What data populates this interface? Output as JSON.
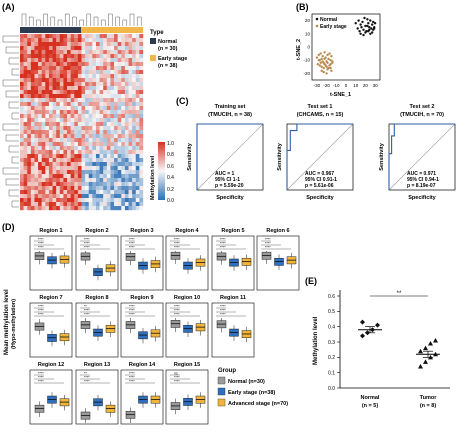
{
  "panels": {
    "A": {
      "letter": "(A)",
      "legend_title": "Type",
      "legend_items": [
        {
          "label": "Normal",
          "sub": "(n = 30)",
          "color": "#2b3a4e"
        },
        {
          "label": "Early stage",
          "sub": "(n = 38)",
          "color": "#f2b74a"
        }
      ],
      "colorbar_title": "Methylation level",
      "colorbar_ticks": [
        "1.0",
        "0.8",
        "0.6",
        "0.4",
        "0.2",
        "0.0"
      ]
    },
    "B": {
      "letter": "(B)",
      "legend": [
        "Normal",
        "Early stage"
      ],
      "xlabel": "t-SNE_1",
      "ylabel": "t-SNE_2",
      "x_ticks": [
        "-30",
        "-20",
        "-10",
        "0",
        "10",
        "20",
        "30"
      ],
      "y_ticks": [
        "20",
        "10",
        "0",
        "-10",
        "-20"
      ]
    },
    "C": {
      "letter": "(C)",
      "plots": [
        {
          "title": "Training set",
          "subtitle": "(TMUCIH, n = 38)",
          "auc": "AUC = 1",
          "ci": "95% CI 1-1",
          "p": "p = 5.59e-20"
        },
        {
          "title": "Test set 1",
          "subtitle": "(CHCAMS, n = 15)",
          "auc": "AUC = 0.967",
          "ci": "95% CI 0.91-1",
          "p": "p = 5.61e-06"
        },
        {
          "title": "Test set 2",
          "subtitle": "(TMUCIH, n = 70)",
          "auc": "AUC = 0.971",
          "ci": "95% CI 0.94-1",
          "p": "p = 8.19e-07"
        }
      ],
      "xlabel": "Specificity",
      "ylabel": "Sensitivity"
    },
    "D": {
      "letter": "(D)",
      "ylabel_line1": "Mean methylation level",
      "ylabel_line2": "(Hypo-methylation)",
      "regions": [
        "Region 1",
        "Region 2",
        "Region 3",
        "Region 4",
        "Region 5",
        "Region 6",
        "Region 7",
        "Region 8",
        "Region 9",
        "Region 10",
        "Region 11",
        "Region 12",
        "Region 13",
        "Region 14",
        "Region 15"
      ],
      "sig_rows": [
        [
          "****",
          "****",
          "****",
          "****",
          "****",
          "****",
          "****",
          "**",
          "****",
          "****",
          "****",
          "****",
          "**",
          "****",
          "ns"
        ],
        [
          "****",
          "****",
          "****",
          "****",
          "****",
          "****",
          "****",
          "****",
          "****",
          "****",
          "****",
          "****",
          "****",
          "****",
          "****"
        ],
        [
          "****",
          "****",
          "****",
          "****",
          "****",
          "****",
          "****",
          "****",
          "****",
          "****",
          "****",
          "****",
          "****",
          "****",
          "****"
        ]
      ],
      "legend_title": "Group",
      "legend_items": [
        {
          "label": "Normal (n=30)",
          "color": "#9a9a9a"
        },
        {
          "label": "Early stage (n=38)",
          "color": "#2d6fc0"
        },
        {
          "label": "Advanced stage (n=70)",
          "color": "#f2b53a"
        }
      ]
    },
    "E": {
      "letter": "(E)",
      "sig": "**",
      "ylabel": "Methylation level",
      "y_ticks": [
        "0.6",
        "0.5",
        "0.4",
        "0.3",
        "0.2",
        "0.1",
        "0.0"
      ],
      "groups": [
        {
          "label": "Normal",
          "sub": "(n = 5)"
        },
        {
          "label": "Tumor",
          "sub": "(n = 8)"
        }
      ]
    }
  },
  "chart_data": [
    {
      "type": "scatter",
      "panel": "B",
      "xlabel": "t-SNE_1",
      "ylabel": "t-SNE_2",
      "xlim": [
        -35,
        35
      ],
      "ylim": [
        -25,
        25
      ],
      "series": [
        {
          "name": "Normal",
          "color": "#111111",
          "x": [
            10,
            13,
            15,
            17,
            19,
            20,
            22,
            23,
            24,
            25,
            27,
            28,
            29,
            30,
            12,
            14,
            16,
            18,
            21,
            22,
            24,
            26,
            27,
            29,
            15,
            18,
            20,
            23,
            25,
            28
          ],
          "y": [
            18,
            20,
            17,
            19,
            22,
            16,
            21,
            18,
            15,
            20,
            17,
            19,
            14,
            18,
            14,
            12,
            15,
            13,
            12,
            16,
            13,
            14,
            11,
            15,
            10,
            9,
            11,
            12,
            10,
            13
          ]
        },
        {
          "name": "Early stage",
          "color": "#b88a4e",
          "x": [
            -30,
            -28,
            -27,
            -26,
            -25,
            -24,
            -23,
            -22,
            -21,
            -20,
            -19,
            -18,
            -17,
            -16,
            -15,
            -14,
            -29,
            -27,
            -25,
            -23,
            -22,
            -20,
            -19,
            -17,
            -16,
            -15,
            -28,
            -26,
            -24,
            -22,
            -21,
            -19,
            -18,
            -16,
            -14,
            -25,
            -23,
            -20
          ],
          "y": [
            -8,
            -6,
            -10,
            -5,
            -9,
            -7,
            -12,
            -4,
            -8,
            -11,
            -6,
            -9,
            -5,
            -10,
            -7,
            -12,
            -13,
            -14,
            -15,
            -16,
            -13,
            -15,
            -17,
            -14,
            -16,
            -18,
            -10,
            -12,
            -11,
            -9,
            -14,
            -12,
            -16,
            -13,
            -11,
            -18,
            -19,
            -20
          ]
        }
      ]
    },
    {
      "type": "line",
      "panel": "C",
      "xlabel": "Specificity",
      "ylabel": "Sensitivity",
      "curves": [
        {
          "name": "Training set",
          "fpr": [
            0,
            0,
            1
          ],
          "tpr": [
            0,
            1,
            1
          ]
        },
        {
          "name": "Test set 1",
          "fpr": [
            0,
            0,
            0.05,
            0.05,
            0.15,
            0.15,
            1
          ],
          "tpr": [
            0,
            0.6,
            0.6,
            0.9,
            0.9,
            1,
            1
          ]
        },
        {
          "name": "Test set 2",
          "fpr": [
            0,
            0,
            0.04,
            0.04,
            0.08,
            0.08,
            1
          ],
          "tpr": [
            0,
            0.55,
            0.55,
            0.82,
            0.82,
            1,
            1
          ]
        }
      ]
    },
    {
      "type": "box",
      "panel": "D",
      "ylim": [
        0,
        1
      ],
      "groups": [
        "Normal",
        "Early stage",
        "Advanced stage"
      ],
      "regions": [
        {
          "name": "Region 1",
          "medians": [
            0.87,
            0.76,
            0.78
          ]
        },
        {
          "name": "Region 2",
          "medians": [
            0.86,
            0.45,
            0.55
          ]
        },
        {
          "name": "Region 3",
          "medians": [
            0.85,
            0.62,
            0.66
          ]
        },
        {
          "name": "Region 4",
          "medians": [
            0.88,
            0.62,
            0.7
          ]
        },
        {
          "name": "Region 5",
          "medians": [
            0.86,
            0.7,
            0.72
          ]
        },
        {
          "name": "Region 6",
          "medians": [
            0.88,
            0.72,
            0.76
          ]
        },
        {
          "name": "Region 7",
          "medians": [
            0.78,
            0.48,
            0.5
          ]
        },
        {
          "name": "Region 8",
          "medians": [
            0.82,
            0.62,
            0.72
          ]
        },
        {
          "name": "Region 9",
          "medians": [
            0.82,
            0.55,
            0.6
          ]
        },
        {
          "name": "Region 10",
          "medians": [
            0.85,
            0.72,
            0.76
          ]
        },
        {
          "name": "Region 11",
          "medians": [
            0.84,
            0.62,
            0.58
          ]
        },
        {
          "name": "Region 12",
          "medians": [
            0.38,
            0.62,
            0.55
          ]
        },
        {
          "name": "Region 13",
          "medians": [
            0.2,
            0.55,
            0.38
          ]
        },
        {
          "name": "Region 14",
          "medians": [
            0.22,
            0.62,
            0.62
          ]
        },
        {
          "name": "Region 15",
          "medians": [
            0.45,
            0.56,
            0.62
          ]
        }
      ]
    },
    {
      "type": "scatter",
      "panel": "E",
      "ylabel": "Methylation level",
      "ylim": [
        0,
        0.6
      ],
      "categories": [
        "Normal",
        "Tumor"
      ],
      "series": [
        {
          "name": "Normal",
          "mean": 0.38,
          "values": [
            0.34,
            0.36,
            0.38,
            0.41,
            0.43
          ]
        },
        {
          "name": "Tumor",
          "mean": 0.22,
          "values": [
            0.14,
            0.17,
            0.2,
            0.22,
            0.24,
            0.26,
            0.29,
            0.31
          ]
        }
      ]
    }
  ]
}
